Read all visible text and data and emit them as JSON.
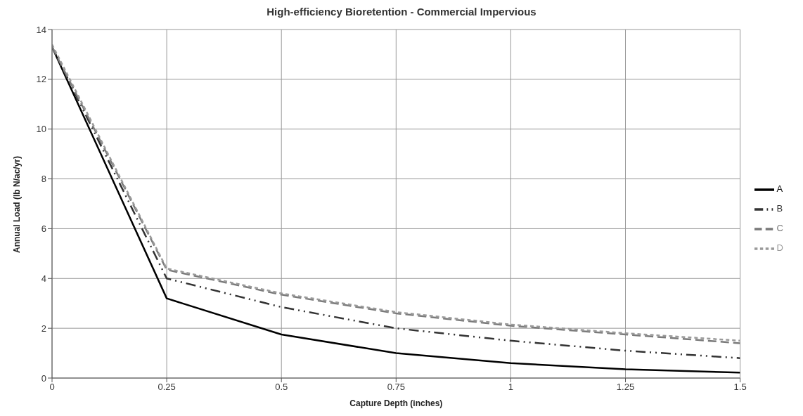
{
  "chart_data": {
    "type": "line",
    "title": "High-efficiency Bioretention - Commercial Impervious",
    "xlabel": "Capture Depth (inches)",
    "ylabel": "Annual Load (lb N/ac/yr)",
    "x": [
      0,
      0.25,
      0.5,
      0.75,
      1,
      1.25,
      1.5
    ],
    "series": [
      {
        "name": "A",
        "color": "#000000",
        "line_style": "solid",
        "values": [
          13.3,
          3.2,
          1.75,
          1.0,
          0.6,
          0.35,
          0.22
        ]
      },
      {
        "name": "B",
        "color": "#333333",
        "line_style": "dashdotdot",
        "values": [
          13.3,
          4.0,
          2.85,
          2.0,
          1.5,
          1.1,
          0.8
        ]
      },
      {
        "name": "C",
        "color": "#7a7a7a",
        "line_style": "dashed",
        "values": [
          13.3,
          4.35,
          3.35,
          2.6,
          2.1,
          1.75,
          1.4
        ]
      },
      {
        "name": "D",
        "color": "#9a9a9a",
        "line_style": "dotted",
        "values": [
          13.4,
          4.4,
          3.4,
          2.65,
          2.15,
          1.8,
          1.5
        ]
      }
    ],
    "xlim": [
      0,
      1.5
    ],
    "xticks": [
      0,
      0.25,
      0.5,
      0.75,
      1,
      1.25,
      1.5
    ],
    "ylim": [
      0,
      14
    ],
    "yticks": [
      0,
      2,
      4,
      6,
      8,
      10,
      12,
      14
    ],
    "grid": true,
    "legend": "right",
    "marker": "none"
  }
}
